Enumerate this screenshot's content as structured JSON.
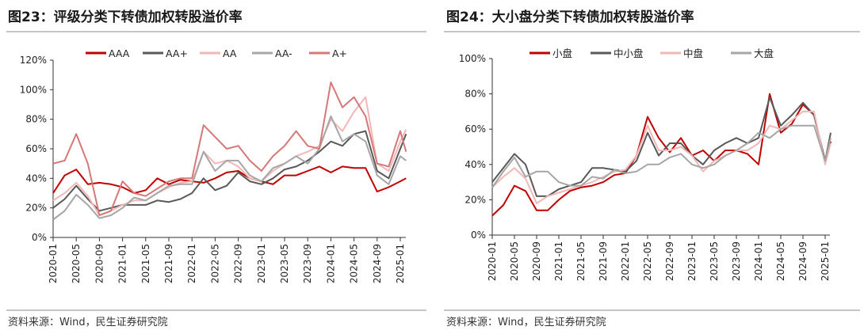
{
  "chart_data": [
    {
      "type": "line",
      "title": "图23：评级分类下转债加权转股溢价率",
      "source": "资料来源：Wind，民生证券研究院",
      "xlabel": "",
      "ylabel": "",
      "ylim": [
        0,
        120
      ],
      "yticks": [
        "0%",
        "20%",
        "40%",
        "60%",
        "80%",
        "100%",
        "120%"
      ],
      "xticks": [
        "2020-01",
        "2020-05",
        "2020-09",
        "2021-01",
        "2021-05",
        "2021-09",
        "2022-01",
        "2022-05",
        "2022-09",
        "2023-01",
        "2023-05",
        "2023-09",
        "2024-01",
        "2024-05",
        "2024-09",
        "2025-01"
      ],
      "legend_position": "top",
      "grid": false,
      "x": [
        "2020-01",
        "2020-03",
        "2020-05",
        "2020-07",
        "2020-09",
        "2020-11",
        "2021-01",
        "2021-03",
        "2021-05",
        "2021-07",
        "2021-09",
        "2021-11",
        "2022-01",
        "2022-03",
        "2022-05",
        "2022-07",
        "2022-09",
        "2022-11",
        "2023-01",
        "2023-03",
        "2023-05",
        "2023-07",
        "2023-09",
        "2023-11",
        "2024-01",
        "2024-03",
        "2024-05",
        "2024-07",
        "2024-09",
        "2024-11",
        "2025-01",
        "2025-02"
      ],
      "series": [
        {
          "name": "AAA",
          "color": "#c00000",
          "values": [
            30,
            42,
            46,
            36,
            37,
            36,
            34,
            30,
            32,
            40,
            36,
            39,
            38,
            37,
            40,
            44,
            45,
            40,
            38,
            36,
            42,
            42,
            45,
            48,
            44,
            48,
            47,
            47,
            31,
            34,
            38,
            40
          ]
        },
        {
          "name": "AA+",
          "color": "#595959",
          "values": [
            20,
            26,
            35,
            26,
            18,
            20,
            22,
            22,
            22,
            25,
            24,
            26,
            30,
            40,
            32,
            35,
            44,
            38,
            36,
            40,
            46,
            48,
            52,
            58,
            65,
            62,
            70,
            72,
            45,
            40,
            60,
            70
          ]
        },
        {
          "name": "AA",
          "color": "#f2b8b8",
          "values": [
            25,
            30,
            37,
            28,
            15,
            18,
            22,
            25,
            25,
            30,
            34,
            37,
            38,
            58,
            50,
            52,
            48,
            40,
            38,
            45,
            50,
            55,
            58,
            62,
            80,
            72,
            85,
            95,
            50,
            45,
            65,
            73
          ]
        },
        {
          "name": "AA-",
          "color": "#a6a6a6",
          "values": [
            12,
            18,
            29,
            22,
            13,
            15,
            20,
            27,
            25,
            30,
            35,
            36,
            36,
            58,
            45,
            52,
            52,
            42,
            38,
            47,
            50,
            55,
            50,
            60,
            82,
            65,
            70,
            65,
            42,
            36,
            55,
            52
          ]
        },
        {
          "name": "A+",
          "color": "#d67878",
          "values": [
            50,
            52,
            70,
            50,
            15,
            18,
            38,
            30,
            28,
            33,
            38,
            40,
            40,
            76,
            68,
            60,
            62,
            52,
            45,
            55,
            62,
            72,
            62,
            60,
            105,
            88,
            95,
            82,
            50,
            48,
            72,
            58
          ]
        }
      ]
    },
    {
      "type": "line",
      "title": "图24：大小盘分类下转债加权转股溢价率",
      "source": "资料来源：Wind，民生证券研究院",
      "xlabel": "",
      "ylabel": "",
      "ylim": [
        0,
        100
      ],
      "yticks": [
        "0%",
        "20%",
        "40%",
        "60%",
        "80%",
        "100%"
      ],
      "xticks": [
        "2020-01",
        "2020-05",
        "2020-09",
        "2021-01",
        "2021-05",
        "2021-09",
        "2022-01",
        "2022-05",
        "2022-09",
        "2023-01",
        "2023-05",
        "2023-09",
        "2024-01",
        "2024-05",
        "2024-09",
        "2025-01"
      ],
      "legend_position": "top",
      "grid": false,
      "x": [
        "2020-01",
        "2020-03",
        "2020-05",
        "2020-07",
        "2020-09",
        "2020-11",
        "2021-01",
        "2021-03",
        "2021-05",
        "2021-07",
        "2021-09",
        "2021-11",
        "2022-01",
        "2022-03",
        "2022-05",
        "2022-07",
        "2022-09",
        "2022-11",
        "2023-01",
        "2023-03",
        "2023-05",
        "2023-07",
        "2023-09",
        "2023-11",
        "2024-01",
        "2024-03",
        "2024-05",
        "2024-07",
        "2024-09",
        "2024-11",
        "2025-01",
        "2025-02"
      ],
      "series": [
        {
          "name": "小盘",
          "color": "#c00000",
          "values": [
            11,
            17,
            28,
            25,
            14,
            14,
            20,
            25,
            27,
            28,
            30,
            34,
            35,
            45,
            67,
            55,
            47,
            55,
            45,
            48,
            42,
            48,
            48,
            46,
            40,
            80,
            58,
            63,
            74,
            68,
            42,
            53
          ]
        },
        {
          "name": "中小盘",
          "color": "#595959",
          "values": [
            30,
            38,
            46,
            40,
            22,
            22,
            26,
            28,
            30,
            38,
            38,
            37,
            36,
            42,
            58,
            45,
            52,
            52,
            45,
            40,
            48,
            52,
            55,
            52,
            55,
            78,
            62,
            68,
            75,
            68,
            42,
            58
          ]
        },
        {
          "name": "中盘",
          "color": "#f2b8b8",
          "values": [
            27,
            33,
            38,
            32,
            18,
            22,
            24,
            26,
            28,
            30,
            33,
            36,
            37,
            45,
            62,
            48,
            48,
            50,
            45,
            36,
            42,
            45,
            48,
            48,
            52,
            62,
            60,
            65,
            70,
            70,
            40,
            52
          ]
        },
        {
          "name": "大盘",
          "color": "#a6a6a6",
          "values": [
            27,
            36,
            44,
            33,
            36,
            36,
            30,
            28,
            28,
            33,
            32,
            37,
            35,
            36,
            40,
            40,
            44,
            46,
            40,
            38,
            40,
            45,
            48,
            52,
            58,
            55,
            60,
            62,
            62,
            62,
            42,
            55
          ]
        }
      ]
    }
  ]
}
